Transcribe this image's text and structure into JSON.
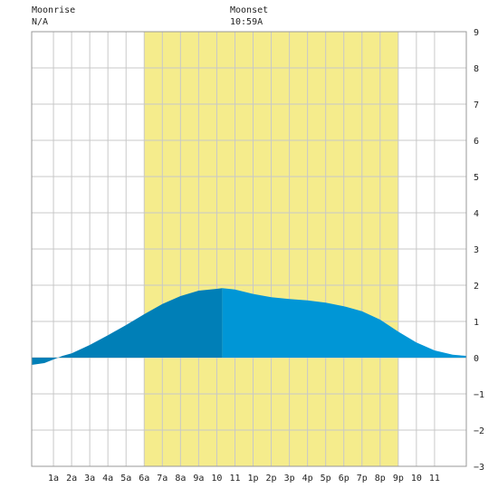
{
  "header": {
    "moonrise_label": "Moonrise",
    "moonrise_value": "N/A",
    "moonset_label": "Moonset",
    "moonset_value": "10:59A"
  },
  "chart_data": {
    "type": "area",
    "title": "",
    "xlabel": "",
    "ylabel": "",
    "xlim": [
      -0.2,
      23.75
    ],
    "ylim": [
      -3,
      9
    ],
    "grid": true,
    "daylight_band": {
      "start": 6,
      "end": 20,
      "color": "#f5ec8c"
    },
    "moon_visible_until": 10.3,
    "colors": {
      "fill": "#0096d6",
      "fill_dark": "#007fb7",
      "grid": "#c8c8c8",
      "background": "#ffffff"
    },
    "x_ticks": [
      {
        "x": 1,
        "label": "1a"
      },
      {
        "x": 2,
        "label": "2a"
      },
      {
        "x": 3,
        "label": "3a"
      },
      {
        "x": 4,
        "label": "4a"
      },
      {
        "x": 5,
        "label": "5a"
      },
      {
        "x": 6,
        "label": "6a"
      },
      {
        "x": 7,
        "label": "7a"
      },
      {
        "x": 8,
        "label": "8a"
      },
      {
        "x": 9,
        "label": "9a"
      },
      {
        "x": 10,
        "label": "10"
      },
      {
        "x": 11,
        "label": "11"
      },
      {
        "x": 12,
        "label": "1p"
      },
      {
        "x": 13,
        "label": "2p"
      },
      {
        "x": 14,
        "label": "3p"
      },
      {
        "x": 15,
        "label": "4p"
      },
      {
        "x": 16,
        "label": "5p"
      },
      {
        "x": 17,
        "label": "6p"
      },
      {
        "x": 18,
        "label": "7p"
      },
      {
        "x": 19,
        "label": "8p"
      },
      {
        "x": 20,
        "label": "9p"
      },
      {
        "x": 21,
        "label": "10"
      },
      {
        "x": 22,
        "label": "11"
      }
    ],
    "y_ticks": [
      -3,
      -2,
      -1,
      0,
      1,
      2,
      3,
      4,
      5,
      6,
      7,
      8,
      9
    ],
    "series": [
      {
        "x": [
          -0.2,
          0.5,
          1,
          1.5,
          2,
          3,
          4,
          5,
          6,
          7,
          8,
          9,
          10,
          10.3,
          11,
          12,
          13,
          14,
          15,
          16,
          17,
          18,
          19,
          20,
          21,
          22,
          23,
          23.75
        ],
        "values": [
          -0.2,
          -0.15,
          -0.05,
          0.05,
          0.12,
          0.35,
          0.62,
          0.9,
          1.2,
          1.48,
          1.7,
          1.85,
          1.9,
          1.92,
          1.88,
          1.76,
          1.67,
          1.62,
          1.58,
          1.52,
          1.42,
          1.28,
          1.05,
          0.72,
          0.42,
          0.2,
          0.08,
          0.05
        ]
      }
    ]
  }
}
